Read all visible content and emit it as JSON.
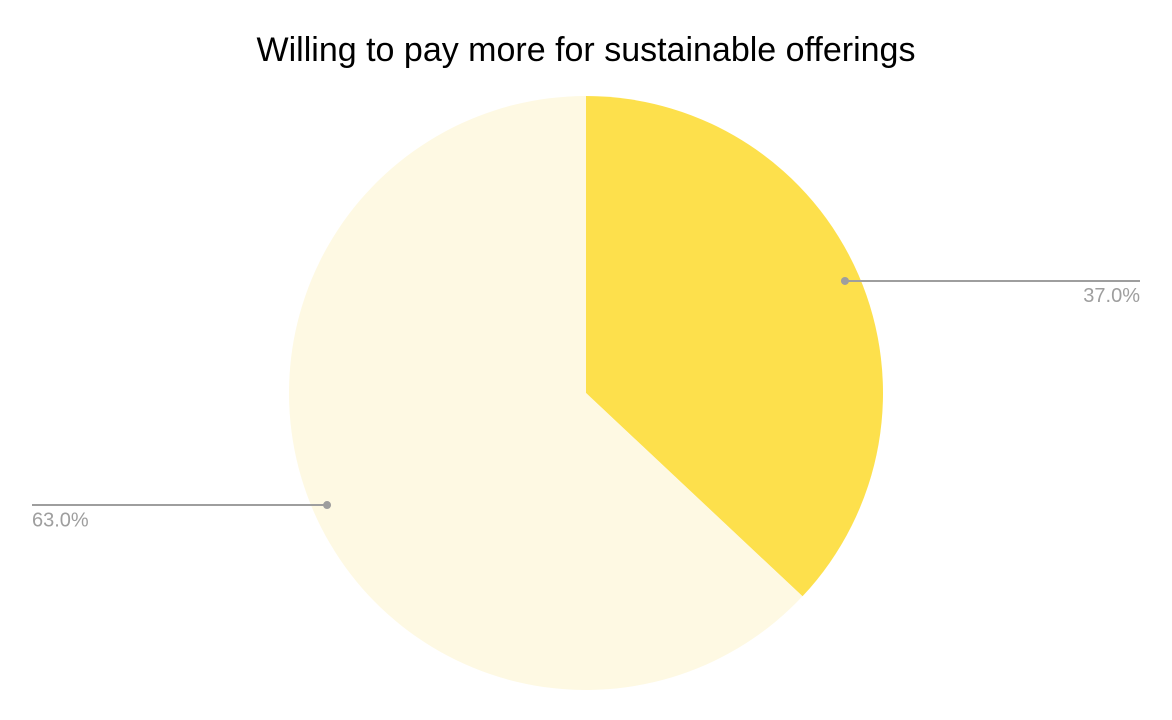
{
  "chart_data": {
    "type": "pie",
    "title": "Willing to pay more for sustainable offerings",
    "values": [
      37,
      63
    ],
    "value_labels": [
      "37.0%",
      "63.0%"
    ],
    "colors": [
      "#fde04c",
      "#fef9e3"
    ]
  }
}
